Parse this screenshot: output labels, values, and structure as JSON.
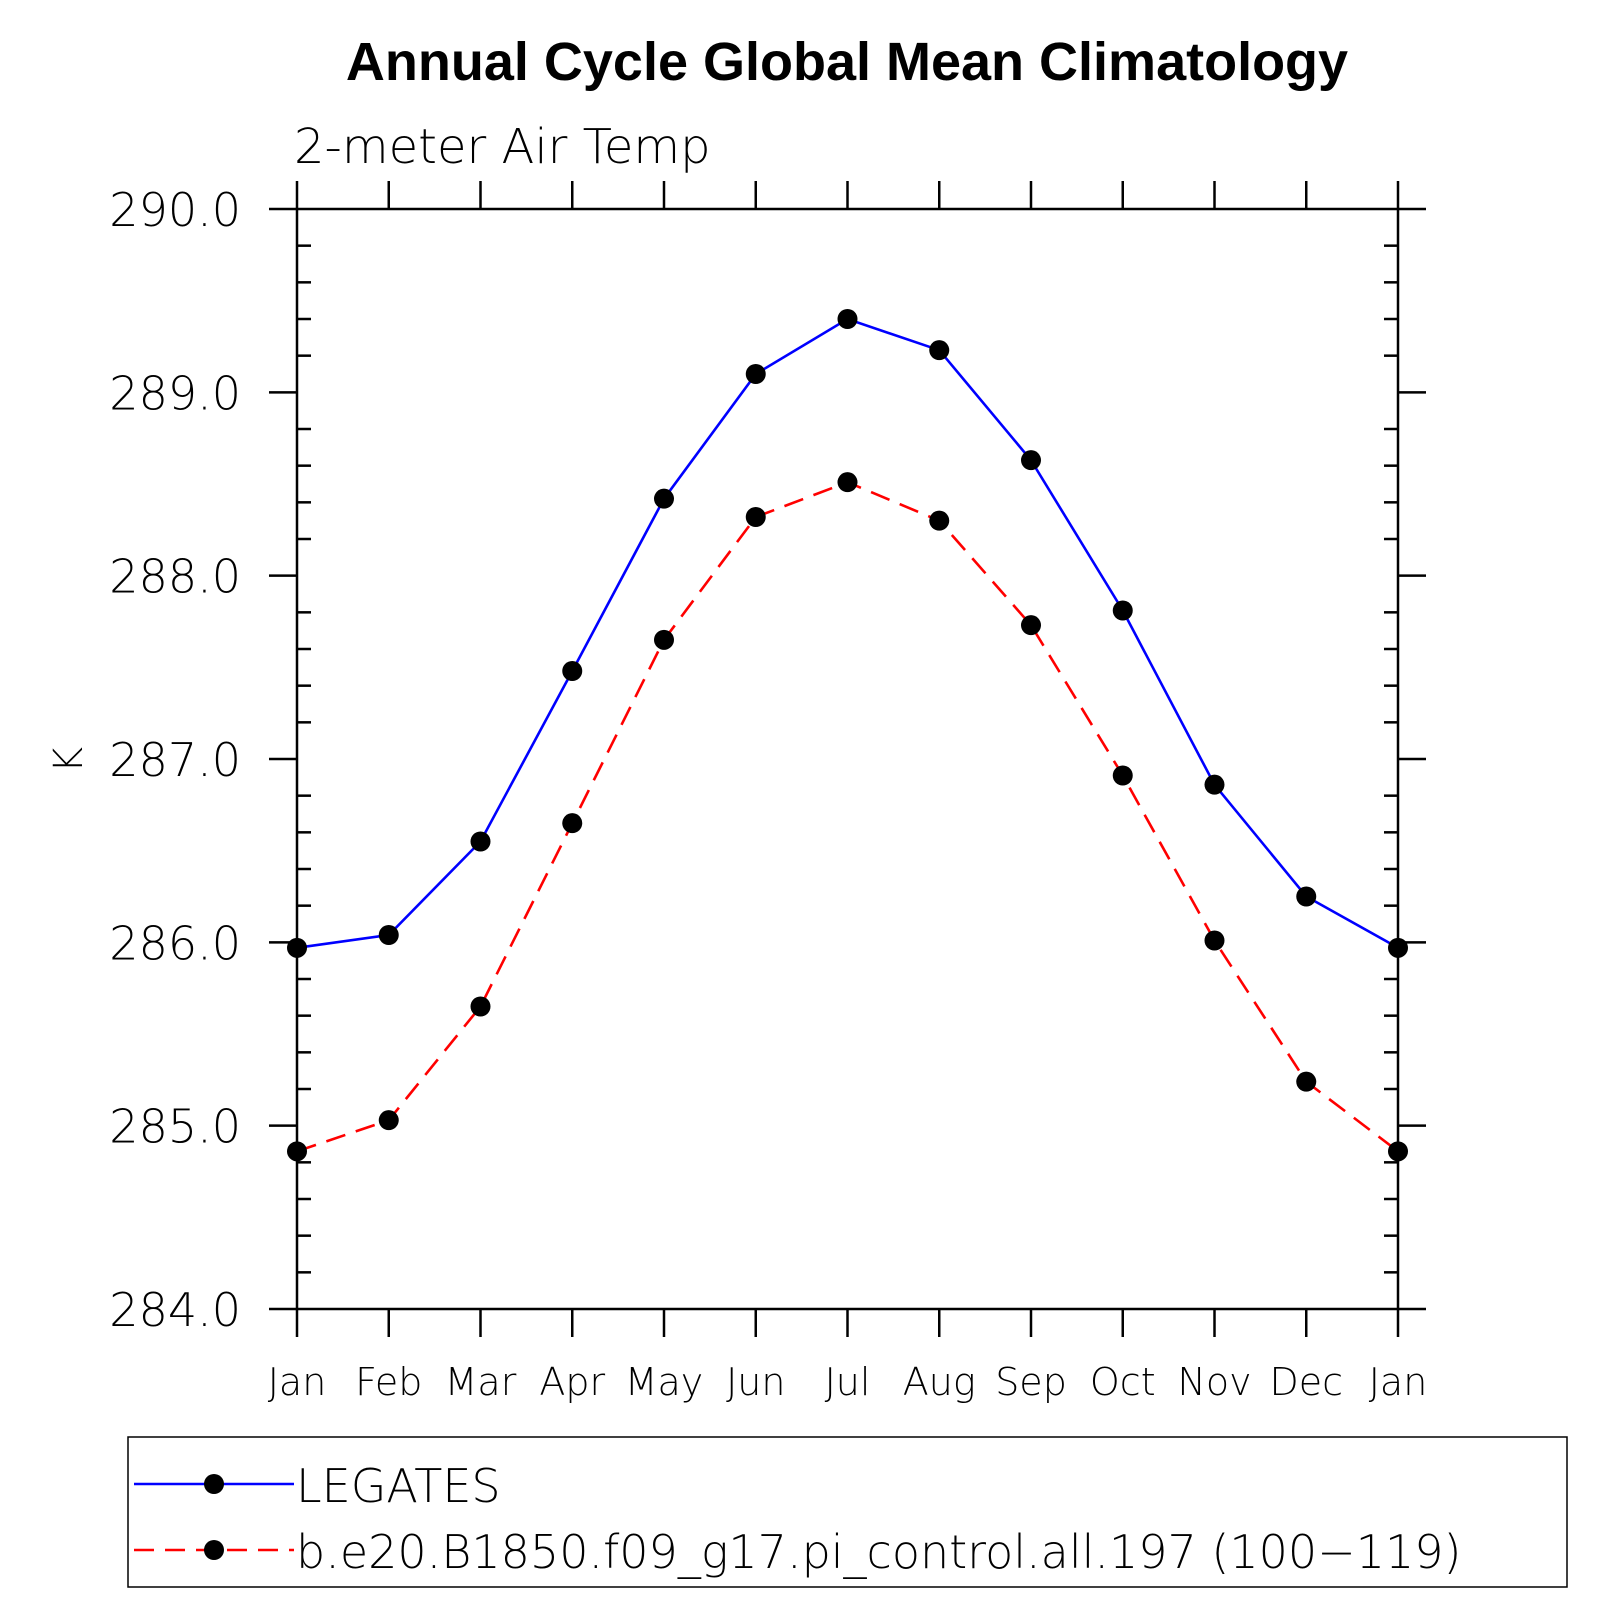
{
  "chart_data": {
    "type": "line",
    "title": "Annual Cycle Global Mean Climatology",
    "subtitle": "2-meter Air Temp",
    "xlabel": "",
    "ylabel": "K",
    "categories": [
      "Jan",
      "Feb",
      "Mar",
      "Apr",
      "May",
      "Jun",
      "Jul",
      "Aug",
      "Sep",
      "Oct",
      "Nov",
      "Dec",
      "Jan"
    ],
    "ylim": [
      284.0,
      290.0
    ],
    "yticks": [
      "284.0",
      "285.0",
      "286.0",
      "287.0",
      "288.0",
      "289.0",
      "290.0"
    ],
    "grid": false,
    "legend_position": "bottom",
    "series": [
      {
        "name": "LEGATES",
        "color": "#0000ff",
        "line_style": "solid",
        "marker": "filled-circle",
        "values": [
          285.97,
          286.04,
          286.55,
          287.48,
          288.42,
          289.1,
          289.4,
          289.23,
          288.63,
          287.81,
          286.86,
          286.25,
          285.97
        ]
      },
      {
        "name": "b.e20.B1850.f09_g17.pi_control.all.197 (100−119)",
        "color": "#ff0000",
        "line_style": "dashed",
        "marker": "filled-circle",
        "values": [
          284.86,
          285.03,
          285.65,
          286.65,
          287.65,
          288.32,
          288.51,
          288.3,
          287.73,
          286.91,
          286.01,
          285.24,
          284.86
        ]
      }
    ]
  }
}
